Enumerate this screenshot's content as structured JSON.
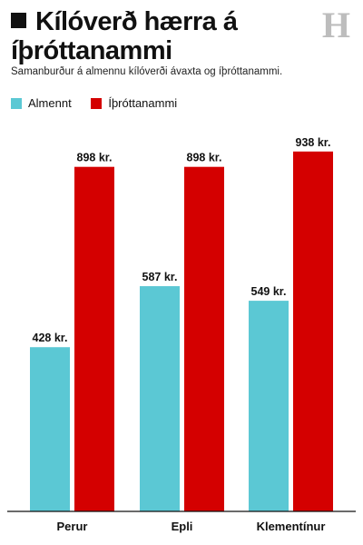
{
  "brand": {
    "logo_letter": "H"
  },
  "chart_data": {
    "type": "bar",
    "title": "Kílóverð hærra á íþróttanammi",
    "subtitle": "Samanburður á almennu kílóverði ávaxta og íþróttanammi.",
    "categories": [
      "Perur",
      "Epli",
      "Klementínur"
    ],
    "series": [
      {
        "name": "Almennt",
        "color": "#5bc8d4",
        "values": [
          428,
          587,
          549
        ],
        "labels": [
          "428 kr.",
          "587 kr.",
          "549 kr."
        ]
      },
      {
        "name": "Íþróttanammi",
        "color": "#d40000",
        "values": [
          898,
          898,
          938
        ],
        "labels": [
          "898 kr.",
          "898 kr.",
          "938 kr."
        ]
      }
    ],
    "ylim": [
      0,
      960
    ],
    "grid": false,
    "legend": "top-left"
  }
}
